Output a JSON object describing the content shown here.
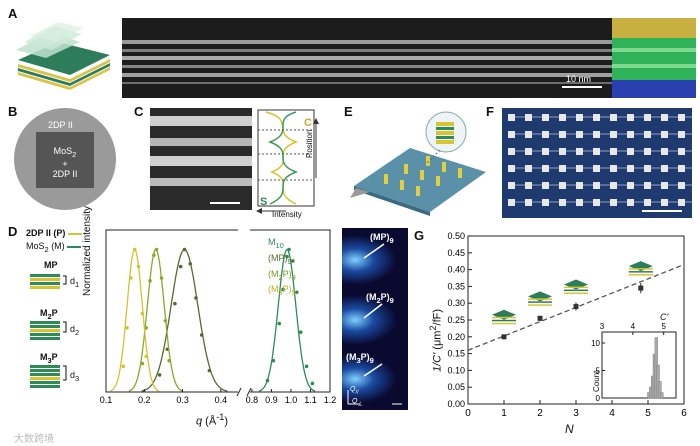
{
  "panels": {
    "A": {
      "label": "A",
      "scalebar": "10 nm"
    },
    "B": {
      "label": "B",
      "top_text": "2DP II",
      "center_text_1": "MoS",
      "center_sub": "2",
      "center_text_2": "+",
      "center_text_3": "2DP II"
    },
    "C": {
      "label": "C",
      "letter_C": "C",
      "letter_S": "S",
      "axis_position": "Position",
      "axis_intensity": "Intensity"
    },
    "D": {
      "label": "D",
      "legend_p": "2DP II (P)",
      "legend_m_prefix": "MoS",
      "legend_m_sub": "2",
      "legend_m_suffix": " (M)",
      "stacks": [
        {
          "name": "MP",
          "d": "d",
          "dsub": "1"
        },
        {
          "name": "M",
          "sub": "2",
          "name2": "P",
          "d": "d",
          "dsub": "2"
        },
        {
          "name": "M",
          "sub": "3",
          "name2": "P",
          "d": "d",
          "dsub": "3"
        }
      ],
      "ylabel": "Normalized intensity",
      "xlabel_q": "q",
      "xlabel_unit": " (Å",
      "xlabel_exp": "-1",
      "xlabel_close": ")",
      "legend": [
        {
          "main": "M",
          "sub": "10",
          "color": "#2e8b57"
        },
        {
          "main": "(MP)",
          "sub": "9",
          "color": "#556b2f"
        },
        {
          "main": "(M",
          "sub2": "2",
          "main2": "P)",
          "sub": "9",
          "color": "#7a9a2a"
        },
        {
          "main": "(M",
          "sub2": "3",
          "main2": "P)",
          "sub": "9",
          "color": "#c8c030"
        }
      ],
      "xticks": [
        "0.1",
        "0.2",
        "0.3",
        "0.4",
        "0.8",
        "0.9",
        "1.0",
        "1.1",
        "1.2"
      ],
      "gisaxs": [
        {
          "main": "(MP)",
          "sub": "9"
        },
        {
          "main": "(M",
          "sub2": "2",
          "main2": "P)",
          "sub": "9"
        },
        {
          "main": "(M",
          "sub2": "3",
          "main2": "P)",
          "sub": "9"
        }
      ],
      "qpar": "Q",
      "qpar_sub": "//",
      "qperp": "Q",
      "qperp_sub": "⊥"
    },
    "E": {
      "label": "E"
    },
    "F": {
      "label": "F"
    },
    "G": {
      "label": "G",
      "ylabel_pre": "1/C'",
      "ylabel_unit": " (μm",
      "ylabel_exp": "2",
      "ylabel_end": "/fF)",
      "xlabel": "N",
      "inset_xlabel": "C'",
      "inset_ylabel": "Count",
      "inset_xticks": [
        "3",
        "4",
        "5"
      ],
      "inset_yticks": [
        "0",
        "5",
        "10"
      ]
    },
    "watermark": "大数跨境"
  },
  "chart_data": [
    {
      "type": "line",
      "title": "",
      "xlabel": "q (Å-1)",
      "ylabel": "Normalized intensity",
      "xlim_left": [
        0.1,
        0.45
      ],
      "xlim_right": [
        0.78,
        1.2
      ],
      "series": [
        {
          "name": "M10",
          "peak": 0.98,
          "width": 0.045,
          "points": [
            [
              0.88,
              0.08
            ],
            [
              0.91,
              0.22
            ],
            [
              0.94,
              0.48
            ],
            [
              0.96,
              0.72
            ],
            [
              0.98,
              0.95
            ],
            [
              0.99,
              1.0
            ],
            [
              1.01,
              0.92
            ],
            [
              1.03,
              0.7
            ],
            [
              1.05,
              0.42
            ],
            [
              1.08,
              0.18
            ],
            [
              1.11,
              0.06
            ]
          ]
        },
        {
          "name": "(MP)9",
          "peak": 0.305,
          "width": 0.035,
          "points": [
            [
              0.24,
              0.12
            ],
            [
              0.26,
              0.3
            ],
            [
              0.28,
              0.62
            ],
            [
              0.295,
              0.88
            ],
            [
              0.305,
              1.0
            ],
            [
              0.32,
              0.9
            ],
            [
              0.335,
              0.66
            ],
            [
              0.35,
              0.4
            ],
            [
              0.37,
              0.15
            ]
          ]
        },
        {
          "name": "(M2P)9",
          "peak": 0.23,
          "width": 0.022,
          "points": [
            [
              0.195,
              0.2
            ],
            [
              0.205,
              0.45
            ],
            [
              0.215,
              0.78
            ],
            [
              0.225,
              0.96
            ],
            [
              0.232,
              1.0
            ],
            [
              0.245,
              0.8
            ],
            [
              0.255,
              0.5
            ],
            [
              0.265,
              0.22
            ]
          ]
        },
        {
          "name": "(M3P)9",
          "peak": 0.175,
          "width": 0.02,
          "points": [
            [
              0.145,
              0.18
            ],
            [
              0.155,
              0.45
            ],
            [
              0.165,
              0.8
            ],
            [
              0.175,
              1.0
            ],
            [
              0.185,
              0.88
            ],
            [
              0.195,
              0.55
            ],
            [
              0.205,
              0.25
            ]
          ]
        }
      ]
    },
    {
      "type": "scatter",
      "title": "",
      "xlabel": "N",
      "ylabel": "1/C' (μm2/fF)",
      "xlim": [
        0,
        6
      ],
      "ylim": [
        0,
        0.5
      ],
      "xticks": [
        0,
        1,
        2,
        3,
        4,
        5,
        6
      ],
      "yticks": [
        0,
        0.05,
        0.1,
        0.15,
        0.2,
        0.25,
        0.3,
        0.35,
        0.4,
        0.45,
        0.5
      ],
      "points": [
        {
          "x": 1,
          "y": 0.2,
          "err": 0.007
        },
        {
          "x": 2,
          "y": 0.255,
          "err": 0.008
        },
        {
          "x": 3,
          "y": 0.29,
          "err": 0.012
        },
        {
          "x": 4.8,
          "y": 0.345,
          "err": 0.015
        }
      ],
      "fit": {
        "x": [
          0,
          6
        ],
        "y": [
          0.16,
          0.415
        ]
      }
    },
    {
      "type": "bar",
      "title": "",
      "xlabel": "C'",
      "ylabel": "Count",
      "xlim": [
        3,
        5.4
      ],
      "ylim": [
        0,
        12
      ],
      "bins": [
        {
          "x": 4.52,
          "count": 1
        },
        {
          "x": 4.58,
          "count": 2
        },
        {
          "x": 4.64,
          "count": 4
        },
        {
          "x": 4.7,
          "count": 8
        },
        {
          "x": 4.76,
          "count": 11
        },
        {
          "x": 4.82,
          "count": 6
        },
        {
          "x": 4.88,
          "count": 3
        },
        {
          "x": 4.94,
          "count": 1
        }
      ]
    }
  ]
}
